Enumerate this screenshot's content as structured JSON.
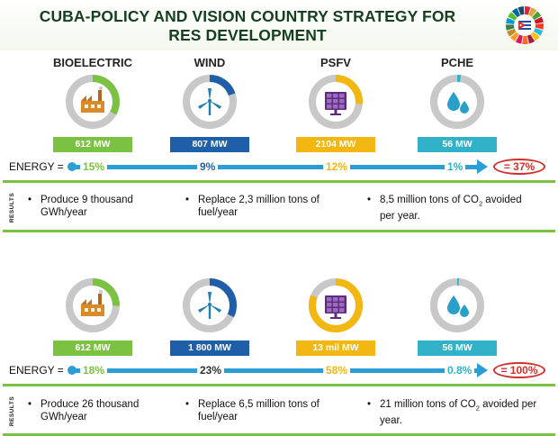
{
  "title": "CUBA-POLICY AND VISION COUNTRY STRATEGY FOR RES DEVELOPMENT",
  "colors": {
    "bio": "#7cc242",
    "wind": "#1f5fa8",
    "psfv": "#f3b712",
    "pche": "#31b2c9",
    "donut_bg": "#c8c8c8",
    "bar": "#2c9ed6",
    "total": "#d0312d"
  },
  "sections": [
    {
      "energy_label": "ENERGY =",
      "techs": [
        {
          "name": "BIOELECTRIC",
          "icon": "factory-icon",
          "capacity": "612 MW",
          "share": "15%",
          "share_value": 15,
          "pct_color": "#7cc242"
        },
        {
          "name": "WIND",
          "icon": "wind-turbine-icon",
          "capacity": "807 MW",
          "share": "9%",
          "share_value": 9,
          "pct_color": "#1f5fa8"
        },
        {
          "name": "PSFV",
          "icon": "solar-panel-icon",
          "capacity": "2104 MW",
          "share": "12%",
          "share_value": 12,
          "pct_color": "#f3b712"
        },
        {
          "name": "PCHE",
          "icon": "water-drops-icon",
          "capacity": "56 MW",
          "share": "1%",
          "share_value": 1,
          "pct_color": "#31b2c9"
        }
      ],
      "total": "= 37%",
      "results_label": "RESULTS",
      "results": [
        {
          "text": "Produce 9 thousand GWh/year"
        },
        {
          "text": "Replace 2,3 million tons of fuel/year"
        },
        {
          "pre": "8,5 million tons of CO",
          "sub": "2",
          "post": " avoided per year."
        }
      ]
    },
    {
      "energy_label": "ENERGY =",
      "techs": [
        {
          "name": "BIOELECTRIC",
          "icon": "factory-icon",
          "capacity": "612 MW",
          "share": "18%",
          "share_value": 18,
          "pct_color": "#7cc242"
        },
        {
          "name": "WIND",
          "icon": "wind-turbine-icon",
          "capacity": "1 800 MW",
          "share": "23%",
          "share_value": 23,
          "pct_color": "#333333"
        },
        {
          "name": "PSFV",
          "icon": "solar-panel-icon",
          "capacity": "13 mil MW",
          "share": "58%",
          "share_value": 58,
          "pct_color": "#f3b712"
        },
        {
          "name": "PCHE",
          "icon": "water-drops-icon",
          "capacity": "56 MW",
          "share": "0.8%",
          "share_value": 0.8,
          "pct_color": "#31b2c9"
        }
      ],
      "total": "= 100%",
      "results_label": "RESULTS",
      "results": [
        {
          "text": "Produce 26 thousand GWh/year"
        },
        {
          "text": "Replace 6,5 million tons of fuel/year"
        },
        {
          "pre": "21 million tons of CO",
          "sub": "2",
          "post": " avoided per year."
        }
      ]
    }
  ]
}
